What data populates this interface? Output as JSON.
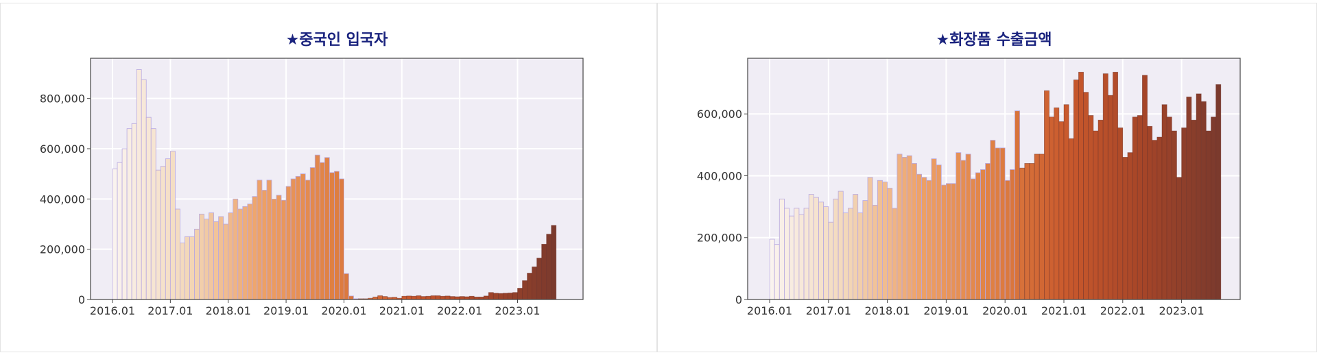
{
  "colors": {
    "plot_bg": "#f0edf5",
    "grid": "#ffffff",
    "axis": "#444444",
    "title": "#1a237e",
    "bar_edge": "#b7a8e0",
    "gradient_stops": [
      "#faf3ee",
      "#f3d8b9",
      "#eda167",
      "#df7f42",
      "#c8582c",
      "#a54528",
      "#7b3a2d"
    ]
  },
  "chart_data": [
    {
      "type": "bar",
      "title": "★중국인 입국자",
      "ylim": [
        0,
        960000
      ],
      "yticks": [
        0,
        200000,
        400000,
        600000,
        800000
      ],
      "ytick_labels": [
        "0",
        "200,000",
        "400,000",
        "600,000",
        "800,000"
      ],
      "xtick_labels": [
        "2016.01",
        "2017.01",
        "2018.01",
        "2019.01",
        "2020.01",
        "2021.01",
        "2022.01",
        "2023.01"
      ],
      "grid": true,
      "start": "2016.01",
      "values": [
        520000,
        545000,
        600000,
        680000,
        700000,
        915000,
        875000,
        725000,
        680000,
        515000,
        530000,
        560000,
        590000,
        360000,
        225000,
        250000,
        250000,
        280000,
        340000,
        320000,
        345000,
        310000,
        330000,
        300000,
        345000,
        400000,
        360000,
        370000,
        380000,
        410000,
        475000,
        435000,
        475000,
        400000,
        415000,
        395000,
        450000,
        480000,
        490000,
        500000,
        475000,
        525000,
        575000,
        545000,
        565000,
        505000,
        510000,
        480000,
        103000,
        14000,
        3000,
        3000,
        3000,
        5000,
        10000,
        15000,
        12000,
        8000,
        9000,
        5000,
        13000,
        14000,
        13000,
        15000,
        12000,
        13000,
        15000,
        15000,
        13000,
        14000,
        12000,
        11000,
        12000,
        11000,
        13000,
        10000,
        10000,
        14000,
        28000,
        25000,
        24000,
        25000,
        26000,
        28000,
        45000,
        75000,
        105000,
        130000,
        165000,
        220000,
        260000,
        295000
      ]
    },
    {
      "type": "bar",
      "title": "★화장품 수출금액",
      "ylim": [
        0,
        780000
      ],
      "yticks": [
        0,
        200000,
        400000,
        600000
      ],
      "ytick_labels": [
        "0",
        "200,000",
        "400,000",
        "600,000"
      ],
      "xtick_labels": [
        "2016.01",
        "2017.01",
        "2018.01",
        "2019.01",
        "2020.01",
        "2021.01",
        "2022.01",
        "2023.01"
      ],
      "grid": true,
      "start": "2016.01",
      "values": [
        195000,
        178000,
        325000,
        295000,
        270000,
        295000,
        275000,
        295000,
        340000,
        330000,
        315000,
        300000,
        250000,
        325000,
        350000,
        280000,
        295000,
        340000,
        280000,
        320000,
        395000,
        305000,
        385000,
        380000,
        360000,
        295000,
        470000,
        460000,
        465000,
        440000,
        405000,
        395000,
        385000,
        455000,
        435000,
        370000,
        375000,
        375000,
        475000,
        450000,
        470000,
        390000,
        410000,
        420000,
        440000,
        515000,
        490000,
        490000,
        385000,
        420000,
        610000,
        425000,
        440000,
        440000,
        470000,
        470000,
        675000,
        590000,
        620000,
        575000,
        630000,
        520000,
        710000,
        735000,
        670000,
        595000,
        545000,
        580000,
        730000,
        660000,
        735000,
        555000,
        460000,
        475000,
        590000,
        595000,
        725000,
        560000,
        515000,
        525000,
        630000,
        590000,
        545000,
        395000,
        555000,
        655000,
        580000,
        665000,
        640000,
        545000,
        590000,
        695000
      ]
    }
  ]
}
